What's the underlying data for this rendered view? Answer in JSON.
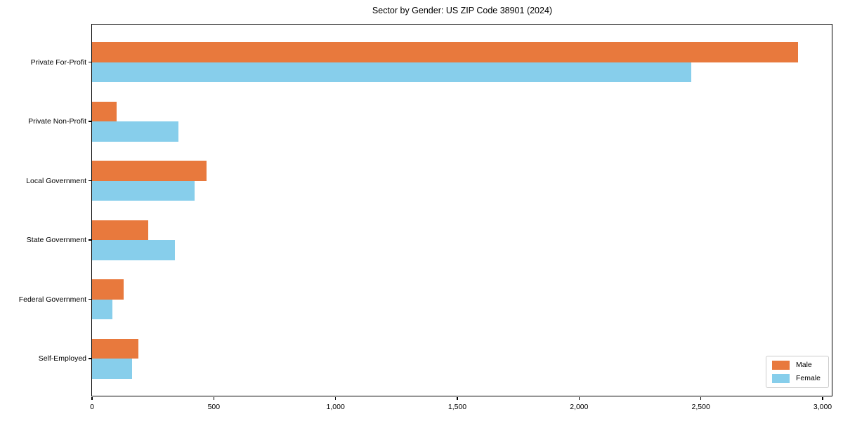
{
  "title": "Sector by Gender: US ZIP Code 38901 (2024)",
  "chart_data": {
    "type": "bar",
    "orientation": "horizontal",
    "title": "Sector by Gender: US ZIP Code 38901 (2024)",
    "categories": [
      "Private For-Profit",
      "Private Non-Profit",
      "Local Government",
      "State Government",
      "Federal Government",
      "Self-Employed"
    ],
    "series": [
      {
        "name": "Male",
        "color": "#e8793d",
        "values": [
          2900,
          100,
          470,
          230,
          130,
          190
        ]
      },
      {
        "name": "Female",
        "color": "#87ceeb",
        "values": [
          2460,
          355,
          420,
          340,
          85,
          165
        ]
      }
    ],
    "xlabel": "",
    "ylabel": "",
    "xlim": [
      0,
      3000
    ],
    "xticks": [
      0,
      500,
      1000,
      1500,
      2000,
      2500,
      3000
    ],
    "xtick_labels": [
      "0",
      "500",
      "1,000",
      "1,500",
      "2,000",
      "2,500",
      "3,000"
    ],
    "grid": false,
    "legend": {
      "position": "lower right",
      "entries": [
        "Male",
        "Female"
      ]
    }
  }
}
